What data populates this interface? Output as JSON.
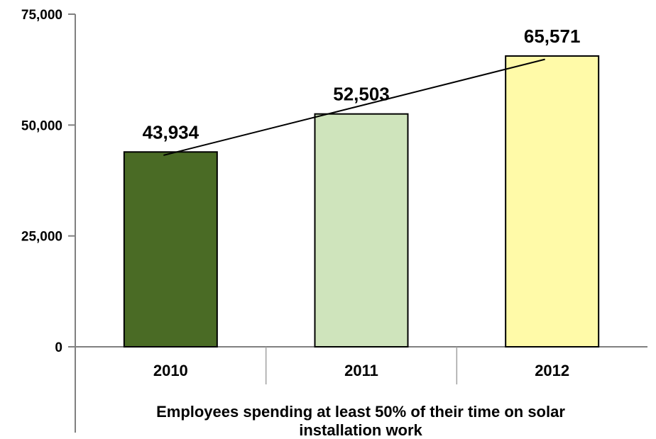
{
  "chart_data": {
    "type": "bar",
    "categories": [
      "2010",
      "2011",
      "2012"
    ],
    "values": [
      43934,
      52503,
      65571
    ],
    "data_labels": [
      "43,934",
      "52,503",
      "65,571"
    ],
    "colors": [
      "#4a6b25",
      "#cfe4bc",
      "#fffaa8"
    ],
    "trendline": true,
    "xlabel": "Employees spending at least 50% of their time on solar installation work",
    "xlabel_lines": [
      "Employees spending at least 50% of their time on solar",
      "installation work"
    ],
    "ylabel": "",
    "ylim": [
      0,
      75000
    ],
    "yticks": [
      0,
      25000,
      50000,
      75000
    ],
    "ytick_labels": [
      "0",
      "25,000",
      "50,000",
      "75,000"
    ],
    "grid": false,
    "legend": "none"
  }
}
